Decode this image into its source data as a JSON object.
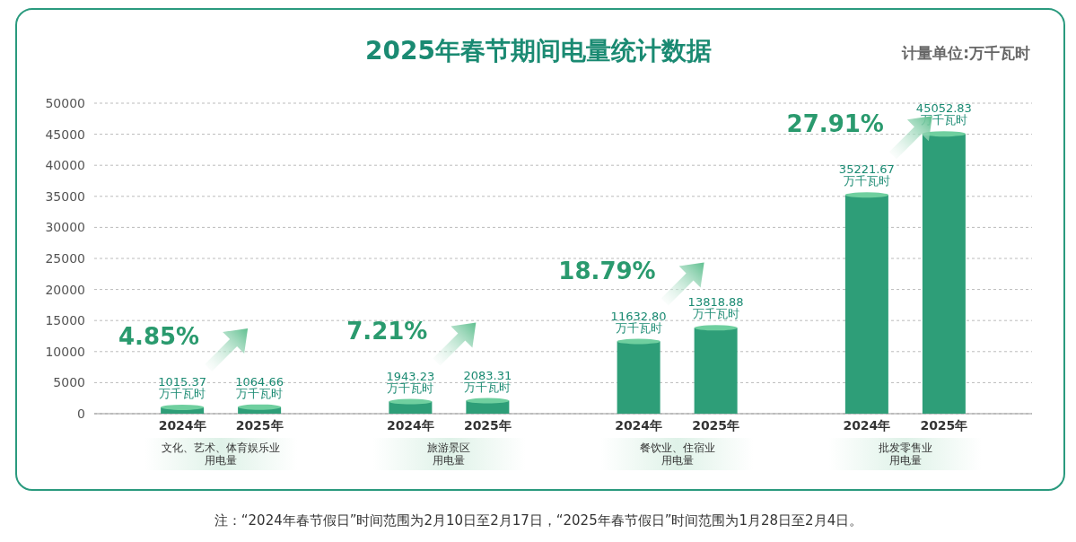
{
  "chart_data": {
    "type": "bar",
    "title": "2025年春节期间电量统计数据",
    "subtitle": "计量单位:万千瓦时",
    "categories": [
      "文化、艺术、体育娱乐业用电量",
      "旅游景区用电量",
      "餐饮业、住宿业用电量",
      "批发零售业用电量"
    ],
    "series": [
      {
        "name": "2024年",
        "color": "#2e9e78",
        "values": [
          1015.37,
          1943.23,
          11632.8,
          35221.67
        ],
        "value_labels": [
          "1015.37\n万千瓦时",
          "1943.23\n万千瓦时",
          "11632.80\n万千瓦时",
          "35221.67\n万千瓦时"
        ]
      },
      {
        "name": "2025年",
        "color": "#2e9e78",
        "values": [
          1064.66,
          2083.31,
          13818.88,
          45052.83
        ],
        "value_labels": [
          "1064.66\n万千瓦时",
          "2083.31\n万千瓦时",
          "13818.88\n万千瓦时",
          "45052.83\n万千瓦时"
        ]
      }
    ],
    "ylim": [
      0,
      50000
    ],
    "yticks": [
      0,
      5000,
      10000,
      15000,
      20000,
      25000,
      30000,
      35000,
      40000,
      45000,
      50000
    ],
    "grid": "y",
    "annotations": [
      "4.85%",
      "7.21%",
      "18.79%",
      "27.91%",
      "注：“2024年春节假日”时间范围为2月10日至2月17日，“2025年春节假日”时间范围为1月28日至2月4日。"
    ]
  }
}
